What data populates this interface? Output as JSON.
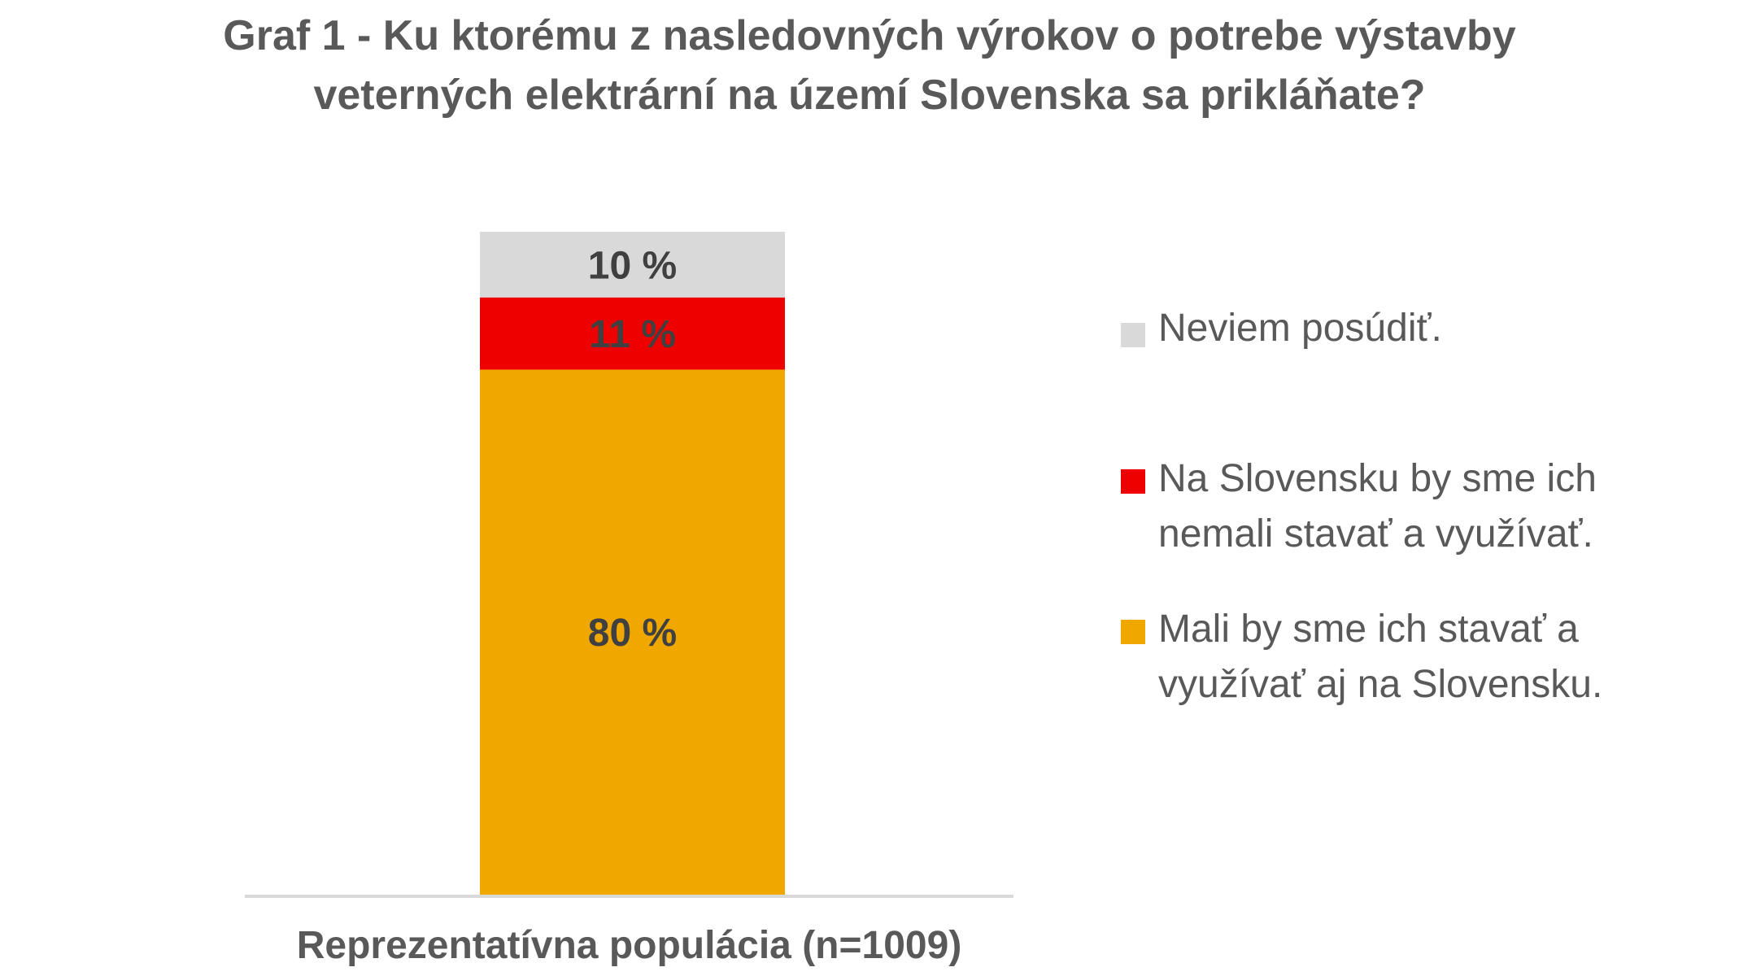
{
  "chart_data": {
    "type": "bar",
    "stacked": true,
    "title_lines": [
      "Graf 1 - Ku ktorému z nasledovných výrokov o potrebe výstavby",
      "veterných elektrární na území Slovenska sa prikláňate?"
    ],
    "categories": [
      "Reprezentatívna populácia (n=1009)"
    ],
    "series": [
      {
        "name": "Mali by sme ich stavať a využívať aj na Slovensku.",
        "values": [
          80
        ],
        "label": "80 %",
        "color": "#F0A800"
      },
      {
        "name": "Na Slovensku by sme ich nemali stavať a využívať.",
        "values": [
          11
        ],
        "label": "11 %",
        "color": "#EE0000"
      },
      {
        "name": "Neviem posúdiť.",
        "values": [
          10
        ],
        "label": "10 %",
        "color": "#D9D9D9"
      }
    ],
    "legend_lines": {
      "neviem": [
        "Neviem posúdiť."
      ],
      "nemali": [
        "Na Slovensku by sme ich",
        "nemali stavať a využívať."
      ],
      "mali": [
        "Mali by sme ich stavať a",
        "využívať aj na Slovensku."
      ]
    },
    "legend_position": "right",
    "ylim": [
      0,
      101
    ],
    "grid": false
  }
}
